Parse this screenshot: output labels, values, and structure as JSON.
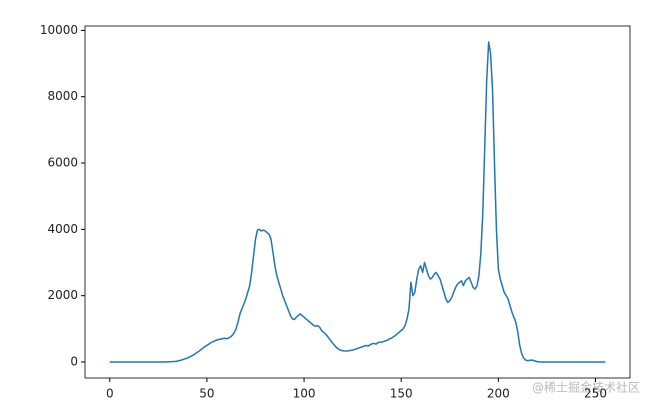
{
  "chart_data": {
    "type": "line",
    "x": [
      0,
      1,
      2,
      3,
      4,
      5,
      6,
      7,
      8,
      9,
      10,
      11,
      12,
      13,
      14,
      15,
      16,
      17,
      18,
      19,
      20,
      21,
      22,
      23,
      24,
      25,
      26,
      27,
      28,
      29,
      30,
      31,
      32,
      33,
      34,
      35,
      36,
      37,
      38,
      39,
      40,
      41,
      42,
      43,
      44,
      45,
      46,
      47,
      48,
      49,
      50,
      51,
      52,
      53,
      54,
      55,
      56,
      57,
      58,
      59,
      60,
      61,
      62,
      63,
      64,
      65,
      66,
      67,
      68,
      69,
      70,
      71,
      72,
      73,
      74,
      75,
      76,
      77,
      78,
      79,
      80,
      81,
      82,
      83,
      84,
      85,
      86,
      87,
      88,
      89,
      90,
      91,
      92,
      93,
      94,
      95,
      96,
      97,
      98,
      99,
      100,
      101,
      102,
      103,
      104,
      105,
      106,
      107,
      108,
      109,
      110,
      111,
      112,
      113,
      114,
      115,
      116,
      117,
      118,
      119,
      120,
      121,
      122,
      123,
      124,
      125,
      126,
      127,
      128,
      129,
      130,
      131,
      132,
      133,
      134,
      135,
      136,
      137,
      138,
      139,
      140,
      141,
      142,
      143,
      144,
      145,
      146,
      147,
      148,
      149,
      150,
      151,
      152,
      153,
      154,
      155,
      156,
      157,
      158,
      159,
      160,
      161,
      162,
      163,
      164,
      165,
      166,
      167,
      168,
      169,
      170,
      171,
      172,
      173,
      174,
      175,
      176,
      177,
      178,
      179,
      180,
      181,
      182,
      183,
      184,
      185,
      186,
      187,
      188,
      189,
      190,
      191,
      192,
      193,
      194,
      195,
      196,
      197,
      198,
      199,
      200,
      201,
      202,
      203,
      204,
      205,
      206,
      207,
      208,
      209,
      210,
      211,
      212,
      213,
      214,
      215,
      216,
      217,
      218,
      219,
      220,
      221,
      222,
      223,
      224,
      225,
      226,
      227,
      228,
      229,
      230,
      231,
      232,
      233,
      234,
      235,
      236,
      237,
      238,
      239,
      240,
      241,
      242,
      243,
      244,
      245,
      246,
      247,
      248,
      249,
      250,
      251,
      252,
      253,
      254,
      255
    ],
    "series": [
      {
        "color": "#1f77b4",
        "values": [
          0,
          0,
          0,
          0,
          0,
          0,
          0,
          0,
          0,
          0,
          0,
          0,
          0,
          0,
          0,
          0,
          0,
          0,
          0,
          0,
          0,
          0,
          0,
          0,
          0,
          0,
          0,
          0,
          0,
          5,
          5,
          8,
          10,
          15,
          20,
          30,
          45,
          60,
          80,
          100,
          120,
          150,
          180,
          210,
          250,
          290,
          330,
          380,
          420,
          470,
          500,
          540,
          580,
          610,
          640,
          660,
          680,
          690,
          700,
          720,
          700,
          720,
          750,
          800,
          880,
          1000,
          1200,
          1450,
          1600,
          1750,
          1900,
          2100,
          2300,
          2700,
          3200,
          3700,
          3980,
          4000,
          3950,
          3980,
          3950,
          3900,
          3850,
          3700,
          3300,
          2900,
          2600,
          2400,
          2200,
          2000,
          1850,
          1700,
          1550,
          1400,
          1300,
          1280,
          1350,
          1400,
          1450,
          1400,
          1350,
          1300,
          1250,
          1200,
          1150,
          1100,
          1080,
          1100,
          1050,
          950,
          900,
          850,
          780,
          700,
          620,
          550,
          480,
          420,
          380,
          350,
          340,
          330,
          330,
          340,
          350,
          360,
          380,
          400,
          420,
          440,
          460,
          480,
          500,
          480,
          520,
          550,
          560,
          540,
          580,
          600,
          600,
          620,
          640,
          660,
          700,
          720,
          760,
          800,
          850,
          900,
          950,
          1000,
          1100,
          1300,
          1600,
          2400,
          2000,
          2100,
          2500,
          2800,
          2900,
          2700,
          3000,
          2800,
          2600,
          2500,
          2550,
          2650,
          2700,
          2600,
          2500,
          2300,
          2100,
          1900,
          1800,
          1850,
          1950,
          2100,
          2250,
          2350,
          2400,
          2450,
          2300,
          2450,
          2500,
          2550,
          2400,
          2250,
          2200,
          2300,
          2600,
          3300,
          4500,
          6500,
          8500,
          9650,
          9300,
          8200,
          6000,
          4000,
          2800,
          2500,
          2300,
          2100,
          2000,
          1900,
          1700,
          1500,
          1350,
          1200,
          900,
          500,
          250,
          120,
          60,
          40,
          50,
          60,
          50,
          30,
          10,
          5,
          0,
          0,
          0,
          0,
          0,
          0,
          0,
          0,
          0,
          0,
          0,
          0,
          0,
          0,
          0,
          0,
          0,
          0,
          0,
          0,
          0,
          0,
          0,
          0,
          0,
          0,
          0,
          0,
          0,
          0,
          0,
          0,
          0,
          0
        ]
      }
    ],
    "xlim": [
      -12.75,
      267.75
    ],
    "xticks": [
      0,
      50,
      100,
      150,
      200,
      250
    ],
    "ylim": [
      -482.5,
      10132.5
    ],
    "yticks": [
      0,
      2000,
      4000,
      6000,
      8000,
      10000
    ],
    "grid": false,
    "watermark": "@稀土掘金技术社区"
  }
}
